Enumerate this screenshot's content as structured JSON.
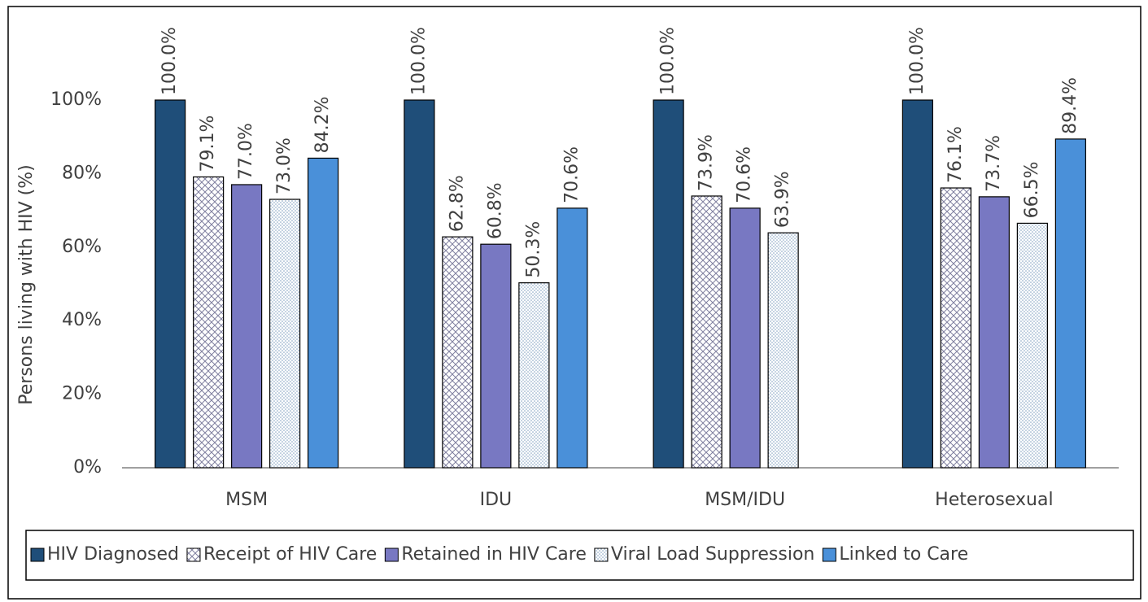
{
  "chart_data": {
    "type": "bar",
    "y_label": "Persons living with HIV (%)",
    "categories": [
      "MSM",
      "IDU",
      "MSM/IDU",
      "Heterosexual"
    ],
    "series": [
      {
        "name": "HIV Diagnosed",
        "color": "#1f4e79",
        "values": [
          100.0,
          100.0,
          100.0,
          100.0
        ],
        "value_labels": [
          "100.0%",
          "100.0%",
          "100.0%",
          "100.0%"
        ]
      },
      {
        "name": "Receipt of HIV Care",
        "color": "#7f7f9f",
        "pattern": "crosshatch",
        "values": [
          79.1,
          62.8,
          73.9,
          76.1
        ],
        "value_labels": [
          "79.1%",
          "62.8%",
          "73.9%",
          "76.1%"
        ]
      },
      {
        "name": "Retained in HIV Care",
        "color": "#7878c2",
        "values": [
          77.0,
          60.8,
          70.6,
          73.7
        ],
        "value_labels": [
          "77.0%",
          "60.8%",
          "70.6%",
          "73.7%"
        ]
      },
      {
        "name": "Viral Load Suppression",
        "color": "#7f9fbf",
        "pattern": "dots",
        "values": [
          73.0,
          50.3,
          63.9,
          66.5
        ],
        "value_labels": [
          "73.0%",
          "50.3%",
          "63.9%",
          "66.5%"
        ]
      },
      {
        "name": "Linked to Care",
        "color": "#4a90d9",
        "values": [
          84.2,
          70.6,
          null,
          89.4
        ],
        "value_labels": [
          "84.2%",
          "70.6%",
          null,
          "89.4%"
        ]
      }
    ],
    "ylim": [
      0,
      100
    ],
    "yticks": [
      {
        "value": 0,
        "label": "0%"
      },
      {
        "value": 20,
        "label": "20%"
      },
      {
        "value": 40,
        "label": "40%"
      },
      {
        "value": 60,
        "label": "60%"
      },
      {
        "value": 80,
        "label": "80%"
      },
      {
        "value": 100,
        "label": "100%"
      }
    ],
    "grid": false,
    "legend": "bottom"
  }
}
